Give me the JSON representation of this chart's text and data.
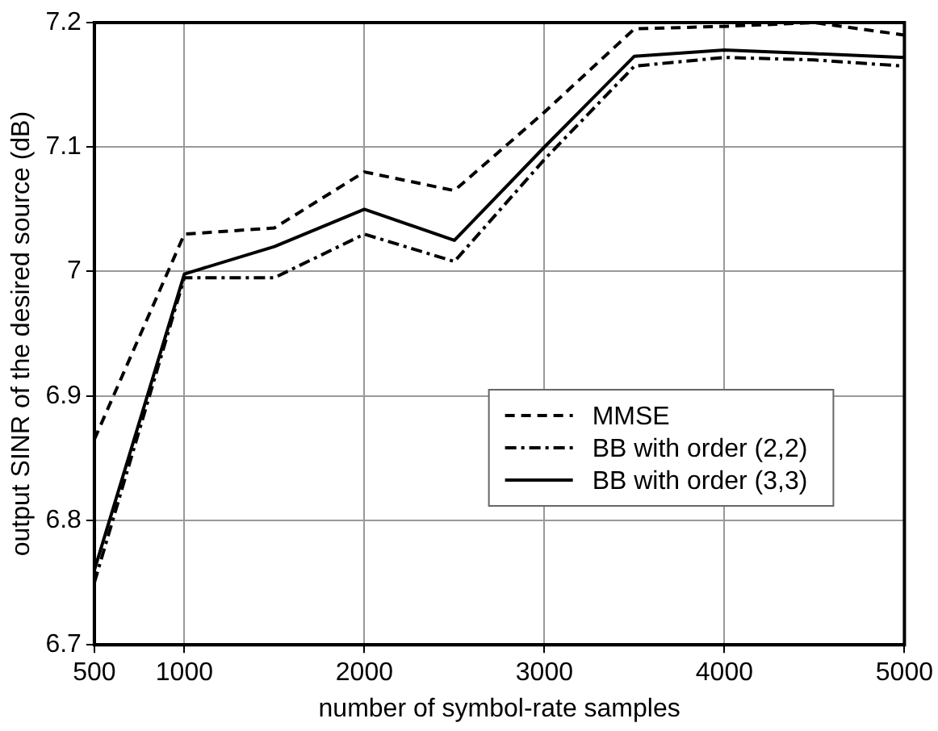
{
  "chart_data": {
    "type": "line",
    "xlabel": "number of symbol-rate samples",
    "ylabel": "output SINR of the desired source (dB)",
    "x": [
      500,
      1000,
      1500,
      2000,
      2500,
      3000,
      3500,
      4000,
      4500,
      5000
    ],
    "series": [
      {
        "name": "MMSE",
        "color": "#000000",
        "line_style": "dashed",
        "values": [
          6.865,
          7.03,
          7.035,
          7.08,
          7.065,
          7.128,
          7.195,
          7.197,
          7.2,
          7.19
        ]
      },
      {
        "name": "BB with order (2,2)",
        "color": "#000000",
        "line_style": "dashdot",
        "values": [
          6.75,
          6.995,
          6.995,
          7.03,
          7.008,
          7.09,
          7.165,
          7.172,
          7.17,
          7.165
        ]
      },
      {
        "name": "BB with order (3,3)",
        "color": "#000000",
        "line_style": "solid",
        "values": [
          6.76,
          6.998,
          7.02,
          7.05,
          7.025,
          7.1,
          7.173,
          7.178,
          7.175,
          7.172
        ]
      }
    ],
    "xlim": [
      500,
      5000
    ],
    "xticks": [
      500,
      1000,
      2000,
      3000,
      4000,
      5000
    ],
    "ylim": [
      6.7,
      7.2
    ],
    "yticks": [
      6.7,
      6.8,
      6.9,
      7,
      7.1,
      7.2
    ],
    "grid": true,
    "legend": "right",
    "marker": "none"
  }
}
